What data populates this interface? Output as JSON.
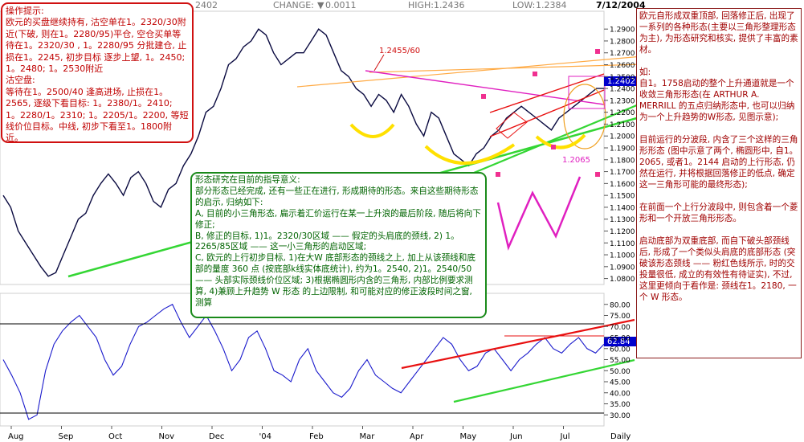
{
  "header": {
    "open_value": "2402",
    "change_label": "CHANGE:",
    "change_value": "0.0011",
    "high_label": "HIGH:",
    "high_value": "1.2436",
    "low_label": "LOW:",
    "low_value": "1.2384",
    "date": "7/12/2004"
  },
  "notes": {
    "left": "操作提示:\n欧元的买盘继续持有, 沽空单在1。2320/30附近(下破, 则在1。2280/95)平仓, 空仓买单等待在1。2320/30 , 1。2280/95 分批建仓, 止损在1。2245, 初步目标 逐步上望, 1。2450; 1。2480; 1。2530附近\n沽空盘:\n等待在1。2500/40 逢高进场, 止损在1。2565, 逐级下看目标: 1。2380/1。2410; 1。2280/1。2310; 1。2205/1。2200, 等短线价位目标。中线, 初步下看至1。1800附近。",
    "center": "形态研究在目前的指导意义:\n部分形态已经完成, 还有一些正在进行, 形成期待的形态。来自这些期待形态的启示, 归纳如下:\nA, 目前的小三角形态, 扁示着汇价运行在某一上升浪的最后阶段, 随后将向下修正;\nB, 修正的目标, 1)1。2320/30区域 —— 假定的头肩底的颈线, 2) 1。2265/85区域 —— 这一小三角形的启动区域;\nC, 欧元的上行初步目标, 1)在大W 底部形态的颈线之上, 加上从该颈线和底部的量度 360 点 (按底部k线实体底统计), 约为1。2540, 2)1。2540/50 —— 头部实际颈线价位区域; 3)根据椭圆形内含的三角形, 内部比例要求测算, 4)兼顾上升趋势 W 形态 的上边限制, 和可能对应的修正波段时间之窗, 测算",
    "right": "欧元自形成双重顶部, 回落修正后, 出现了一系列的各种形态(主要以三角形整理形态为主), 为形态研究和核实, 提供了丰富的素材。\n\n如:\n自1。1758启动的整个上升通道就是一个收敛三角形形态(在 ARTHUR A. MERRILL 的五点归纳形态中, 也可以归纳为一个上升趋势的W形态, 见图示意);\n\n目前运行的分波段, 内含了三个这样的三角形形态 (图中示意了两个, 椭圆形中, 自1。2065, 或者1。2144 启动的上行形态, 仍然在运行, 并将根据回落修正的低点, 确定这一三角形可能的最终形态);\n\n在前面一个上行分波段中, 则包含着一个菱形和一个开放三角形形态。\n\n启动底部为双重底部, 而自下破头部颈线后, 形成了一个类似头肩底的底部形态 (突破该形态颈线 —— 粉红色线所示, 时的交投量很低, 成立的有效性有待证实), 不过, 这里更倾向于看作是: 颈线在1。2180, 一个 W 形态。"
  },
  "chart_data": [
    {
      "type": "line",
      "title": "",
      "ylabel": "",
      "x": [
        "Aug",
        "Sep",
        "Oct",
        "Nov",
        "Dec",
        "'04",
        "Feb",
        "Mar",
        "Apr",
        "May",
        "Jun",
        "Jul",
        "Daily"
      ],
      "ylim": [
        1.075,
        1.305
      ],
      "yticks": [
        1.08,
        1.09,
        1.1,
        1.11,
        1.12,
        1.13,
        1.14,
        1.15,
        1.16,
        1.17,
        1.18,
        1.19,
        1.2,
        1.21,
        1.22,
        1.23,
        1.24,
        1.25,
        1.26,
        1.27,
        1.28,
        1.29
      ],
      "last_value": "1.2402",
      "annotations": [
        "1.2455/60",
        "1.2065"
      ],
      "price_path": [
        1.15,
        1.14,
        1.12,
        1.11,
        1.1,
        1.09,
        1.082,
        1.085,
        1.1,
        1.115,
        1.13,
        1.135,
        1.15,
        1.16,
        1.168,
        1.16,
        1.15,
        1.165,
        1.17,
        1.16,
        1.145,
        1.14,
        1.155,
        1.16,
        1.175,
        1.185,
        1.2,
        1.22,
        1.225,
        1.24,
        1.26,
        1.265,
        1.275,
        1.28,
        1.29,
        1.285,
        1.27,
        1.26,
        1.265,
        1.27,
        1.27,
        1.28,
        1.29,
        1.285,
        1.27,
        1.255,
        1.25,
        1.24,
        1.235,
        1.225,
        1.235,
        1.23,
        1.22,
        1.235,
        1.225,
        1.21,
        1.2,
        1.22,
        1.215,
        1.2,
        1.185,
        1.18,
        1.175,
        1.185,
        1.19,
        1.2,
        1.205,
        1.215,
        1.22,
        1.225,
        1.22,
        1.215,
        1.21,
        1.205,
        1.215,
        1.22,
        1.225,
        1.23,
        1.235,
        1.24,
        1.24
      ]
    },
    {
      "type": "line",
      "title": "",
      "ylim": [
        25,
        85
      ],
      "yticks": [
        30,
        35,
        40,
        45,
        50,
        55,
        60,
        65,
        70,
        75,
        80
      ],
      "last_value": "62.84",
      "indicator_path": [
        55,
        48,
        40,
        28,
        30,
        50,
        62,
        68,
        72,
        75,
        70,
        65,
        55,
        48,
        52,
        62,
        70,
        72,
        75,
        78,
        80,
        72,
        65,
        70,
        75,
        68,
        60,
        50,
        55,
        65,
        68,
        60,
        50,
        48,
        45,
        55,
        60,
        50,
        45,
        40,
        38,
        42,
        50,
        55,
        48,
        45,
        42,
        40,
        45,
        50,
        55,
        60,
        65,
        62,
        55,
        50,
        52,
        58,
        60,
        55,
        50,
        55,
        58,
        62,
        65,
        60,
        58,
        62,
        65,
        60,
        58,
        62
      ]
    }
  ]
}
